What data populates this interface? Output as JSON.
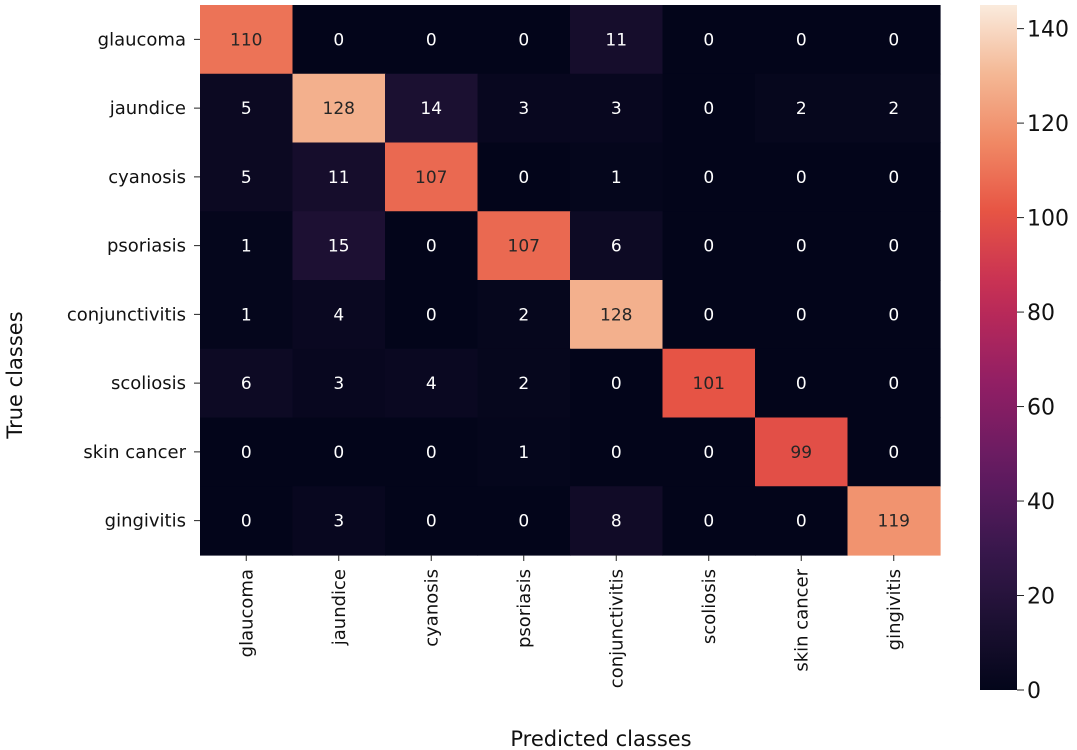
{
  "chart_data": {
    "type": "heatmap",
    "xlabel": "Predicted classes",
    "ylabel": "True classes",
    "x_categories": [
      "glaucoma",
      "jaundice",
      "cyanosis",
      "psoriasis",
      "conjunctivitis",
      "scoliosis",
      "skin cancer",
      "gingivitis"
    ],
    "y_categories": [
      "glaucoma",
      "jaundice",
      "cyanosis",
      "psoriasis",
      "conjunctivitis",
      "scoliosis",
      "skin cancer",
      "gingivitis"
    ],
    "values": [
      [
        110,
        0,
        0,
        0,
        11,
        0,
        0,
        0
      ],
      [
        5,
        128,
        14,
        3,
        3,
        0,
        2,
        2
      ],
      [
        5,
        11,
        107,
        0,
        1,
        0,
        0,
        0
      ],
      [
        1,
        15,
        0,
        107,
        6,
        0,
        0,
        0
      ],
      [
        1,
        4,
        0,
        2,
        128,
        0,
        0,
        0
      ],
      [
        6,
        3,
        4,
        2,
        0,
        101,
        0,
        0
      ],
      [
        0,
        0,
        0,
        1,
        0,
        0,
        99,
        0
      ],
      [
        0,
        3,
        0,
        0,
        8,
        0,
        0,
        119
      ]
    ],
    "colorbar": {
      "range": [
        0,
        145
      ],
      "ticks": [
        0,
        20,
        40,
        60,
        80,
        100,
        120,
        140
      ],
      "colormap": "rocket"
    }
  }
}
